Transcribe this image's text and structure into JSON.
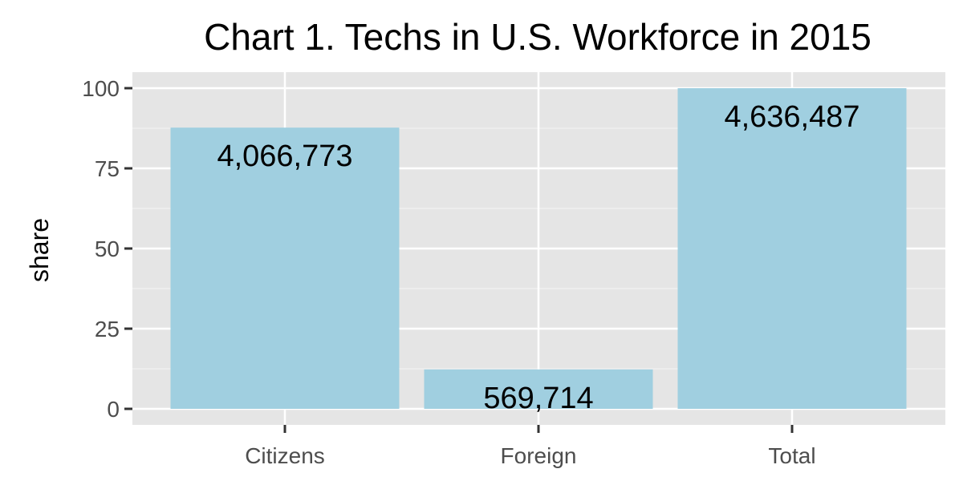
{
  "chart_data": {
    "type": "bar",
    "title": "Chart 1. Techs in U.S. Workforce in 2015",
    "xlabel": "",
    "ylabel": "share",
    "categories": [
      "Citizens",
      "Foreign",
      "Total"
    ],
    "values": [
      87.7,
      12.3,
      100
    ],
    "data_labels": [
      "4,066,773",
      "569,714",
      "4,636,487"
    ],
    "ylim": [
      0,
      100
    ],
    "yticks": [
      0,
      25,
      50,
      75,
      100
    ],
    "ytick_labels": [
      "0",
      "25",
      "50",
      "75",
      "100"
    ],
    "grid": true,
    "legend": "none"
  },
  "colors": {
    "bar": "#a0cfe0",
    "panel": "#e5e5e5",
    "grid_major": "#ffffff",
    "grid_minor": "#f2f2f2",
    "tick": "#333333"
  }
}
